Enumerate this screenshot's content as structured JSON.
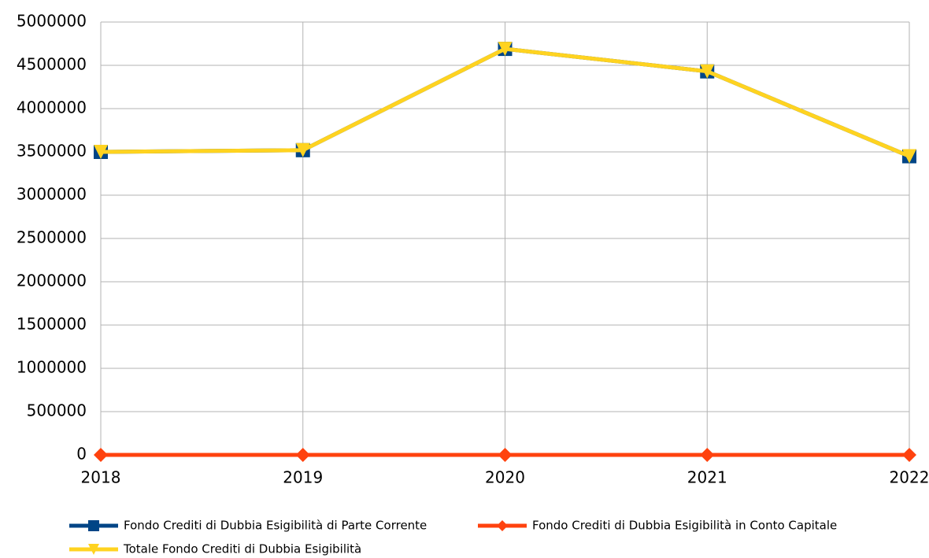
{
  "chart_data": {
    "type": "line",
    "x": [
      2018,
      2019,
      2020,
      2021,
      2022
    ],
    "xlim": [
      2018,
      2022
    ],
    "xticks": [
      2018,
      2019,
      2020,
      2021,
      2022
    ],
    "ylim": [
      0,
      5000000
    ],
    "yticks": [
      0,
      500000,
      1000000,
      1500000,
      2000000,
      2500000,
      3000000,
      3500000,
      4000000,
      4500000,
      5000000
    ],
    "grid": true,
    "legend": "bottom",
    "series": [
      {
        "name": "Fondo Crediti di Dubbia Esigibilità di Parte Corrente",
        "color": "#004586",
        "marker": "square",
        "values": [
          3500000,
          3520000,
          4690000,
          4430000,
          3450000
        ]
      },
      {
        "name": "Fondo Crediti di Dubbia Esigibilità in Conto Capitale",
        "color": "#ff420e",
        "marker": "diamond",
        "values": [
          0,
          0,
          0,
          0,
          0
        ]
      },
      {
        "name": "Totale Fondo Crediti di Dubbia Esigibilità",
        "color": "#ffd320",
        "marker": "triangle-down",
        "values": [
          3500000,
          3520000,
          4690000,
          4430000,
          3450000
        ]
      }
    ]
  }
}
